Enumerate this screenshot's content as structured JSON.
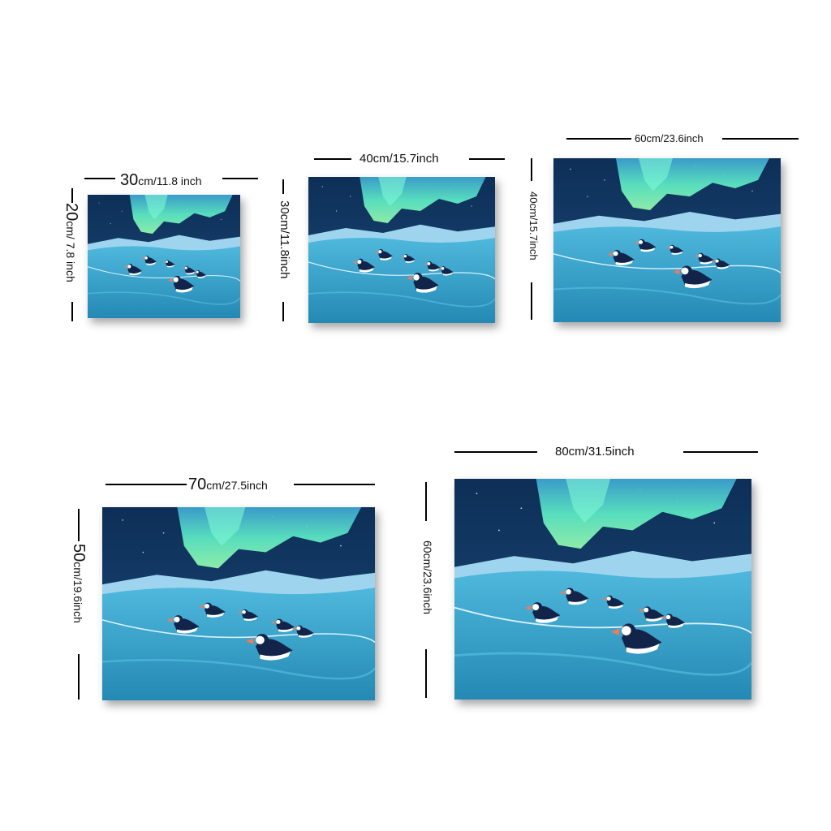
{
  "artwork": {
    "subject": "puffins swimming under northern lights",
    "colors": {
      "sky": "#0f3a63",
      "aurora": "#5ff0c8",
      "mountains": "#9fd4ee",
      "sea": "#2a9cc6",
      "puffin_body": "#13244a",
      "puffin_beak": "#f07a5a"
    }
  },
  "sizes": [
    {
      "width_big": "30",
      "width_small": "cm/11.8 inch",
      "height_big": "20",
      "height_small": "cm/ 7.8 inch"
    },
    {
      "width_label": "40cm/15.7inch",
      "height_label": "30cm/11.8inch"
    },
    {
      "width_label": "60cm/23.6inch",
      "height_label": "40cm/15.7inch"
    },
    {
      "width_big": "70",
      "width_small": "cm/27.5inch",
      "height_big": "50",
      "height_small": "cm/19.6inch"
    },
    {
      "width_label": "80cm/31.5inch",
      "height_label": "60cm/23.6inch"
    }
  ]
}
